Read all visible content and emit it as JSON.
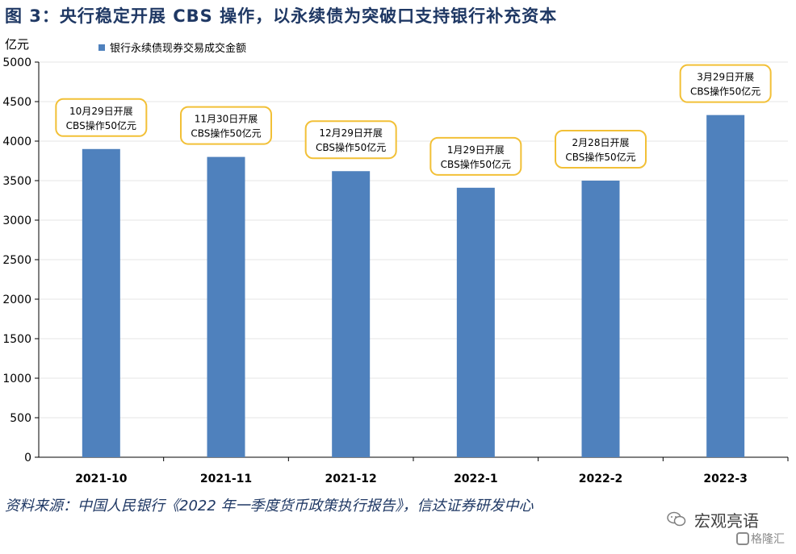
{
  "figure": {
    "title": "图  3：央行稳定开展 CBS 操作，以永续债为突破口支持银行补充资本",
    "source": "资料来源：中国人民银行《2022 年一季度货币政策执行报告》，信达证券研发中心"
  },
  "watermark": {
    "wechat_icon": "wechat-icon",
    "name": "宏观亮语",
    "brand": "格隆汇"
  },
  "colors": {
    "bar": "#4f81bd",
    "callout_border": "#f2c037",
    "title": "#1f3864"
  },
  "chart_data": {
    "type": "bar",
    "title": "",
    "ylabel": "亿元",
    "xlabel": "",
    "ylim": [
      0,
      5000
    ],
    "yticks": [
      "0",
      "500",
      "1000",
      "1500",
      "2000",
      "2500",
      "3000",
      "3500",
      "4000",
      "4500",
      "5000"
    ],
    "grid": true,
    "legend_position": "top-left",
    "categories": [
      "2021-10",
      "2021-11",
      "2021-12",
      "2022-1",
      "2022-2",
      "2022-3"
    ],
    "series": [
      {
        "name": "银行永续债现券交易成交金额",
        "values": [
          3900,
          3800,
          3620,
          3410,
          3500,
          4330
        ]
      }
    ],
    "annotations": [
      {
        "category": "2021-10",
        "line1": "10月29日开展",
        "line2": "CBS操作50亿元"
      },
      {
        "category": "2021-11",
        "line1": "11月30日开展",
        "line2": "CBS操作50亿元"
      },
      {
        "category": "2021-12",
        "line1": "12月29日开展",
        "line2": "CBS操作50亿元"
      },
      {
        "category": "2022-1",
        "line1": "1月29日开展",
        "line2": "CBS操作50亿元"
      },
      {
        "category": "2022-2",
        "line1": "2月28日开展",
        "line2": "CBS操作50亿元"
      },
      {
        "category": "2022-3",
        "line1": "3月29日开展",
        "line2": "CBS操作50亿元"
      }
    ]
  }
}
